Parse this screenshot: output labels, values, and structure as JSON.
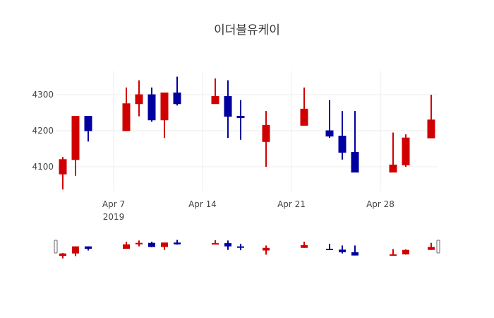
{
  "chart_data": {
    "type": "candlestick",
    "title": "이더블유케이",
    "xlabel": "",
    "ylabel": "",
    "x_tick_labels": [
      "Apr 7\n2019",
      "Apr 14",
      "Apr 21",
      "Apr 28"
    ],
    "x_ticks": [
      "2019-04-07",
      "2019-04-14",
      "2019-04-21",
      "2019-04-28"
    ],
    "y_ticks": [
      4100,
      4200,
      4300
    ],
    "ylim": [
      4020,
      4380
    ],
    "xlim": [
      "2019-04-02",
      "2019-05-03"
    ],
    "grid": true,
    "rangeslider": true,
    "increasing_color": "#d10000",
    "decreasing_color": "#0000a0",
    "series": [
      {
        "date": "2019-04-03",
        "open": 4080,
        "high": 4127,
        "low": 4037,
        "close": 4120
      },
      {
        "date": "2019-04-04",
        "open": 4120,
        "high": 4240,
        "low": 4075,
        "close": 4240
      },
      {
        "date": "2019-04-05",
        "open": 4240,
        "high": 4240,
        "low": 4170,
        "close": 4200
      },
      {
        "date": "2019-04-08",
        "open": 4200,
        "high": 4320,
        "low": 4200,
        "close": 4275
      },
      {
        "date": "2019-04-09",
        "open": 4275,
        "high": 4340,
        "low": 4240,
        "close": 4300
      },
      {
        "date": "2019-04-10",
        "open": 4300,
        "high": 4320,
        "low": 4225,
        "close": 4230
      },
      {
        "date": "2019-04-11",
        "open": 4230,
        "high": 4305,
        "low": 4180,
        "close": 4305
      },
      {
        "date": "2019-04-12",
        "open": 4305,
        "high": 4350,
        "low": 4270,
        "close": 4275
      },
      {
        "date": "2019-04-15",
        "open": 4275,
        "high": 4345,
        "low": 4275,
        "close": 4295
      },
      {
        "date": "2019-04-16",
        "open": 4295,
        "high": 4340,
        "low": 4180,
        "close": 4240
      },
      {
        "date": "2019-04-17",
        "open": 4240,
        "high": 4285,
        "low": 4175,
        "close": 4239
      },
      {
        "date": "2019-04-19",
        "open": 4170,
        "high": 4255,
        "low": 4100,
        "close": 4215
      },
      {
        "date": "2019-04-22",
        "open": 4215,
        "high": 4320,
        "low": 4215,
        "close": 4260
      },
      {
        "date": "2019-04-24",
        "open": 4200,
        "high": 4285,
        "low": 4180,
        "close": 4185
      },
      {
        "date": "2019-04-25",
        "open": 4185,
        "high": 4255,
        "low": 4120,
        "close": 4140
      },
      {
        "date": "2019-04-26",
        "open": 4140,
        "high": 4255,
        "low": 4085,
        "close": 4085
      },
      {
        "date": "2019-04-29",
        "open": 4085,
        "high": 4195,
        "low": 4085,
        "close": 4105
      },
      {
        "date": "2019-04-30",
        "open": 4105,
        "high": 4190,
        "low": 4100,
        "close": 4180
      },
      {
        "date": "2019-05-02",
        "open": 4180,
        "high": 4300,
        "low": 4180,
        "close": 4230
      }
    ]
  }
}
